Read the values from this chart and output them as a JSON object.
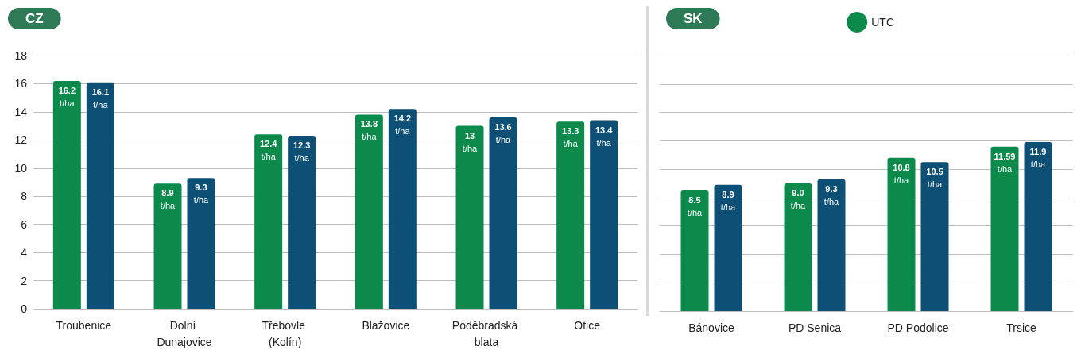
{
  "chart_data": [
    {
      "type": "bar",
      "title": "CZ",
      "categories": [
        "Troubenice",
        "Dolní Dunajovice",
        "Třebovle (Kolín)",
        "Blažovice",
        "Poděbradská blata",
        "Otice"
      ],
      "series": [
        {
          "color": "#0b8a4c",
          "values": [
            16.2,
            8.9,
            12.4,
            13.8,
            13,
            13.3
          ],
          "value_labels": [
            "16.2 t/ha",
            "8.9 t/ha",
            "12.4 t/ha",
            "13.8 t/ha",
            "13 t/ha",
            "13.3 t/ha"
          ]
        },
        {
          "color": "#0d4f75",
          "values": [
            16.1,
            9.3,
            12.3,
            14.2,
            13.6,
            13.4
          ],
          "value_labels": [
            "16.1 t/ha",
            "9.3 t/ha",
            "12.3 t/ha",
            "14.2 t/ha",
            "13.6 t/ha",
            "13.4 t/ha"
          ]
        }
      ],
      "ylim": [
        0,
        18
      ],
      "yticks": [
        0,
        2,
        4,
        6,
        8,
        10,
        12,
        14,
        16,
        18
      ],
      "grid": "y",
      "legend": false
    },
    {
      "type": "bar",
      "title": "SK",
      "categories": [
        "Bánovice",
        "PD Senica",
        "PD Podolice",
        "Trsice"
      ],
      "series": [
        {
          "name": "UTC",
          "color": "#0b8a4c",
          "values": [
            8.5,
            9.0,
            10.8,
            11.59
          ],
          "value_labels": [
            "8.5 t/ha",
            "9.0 t/ha",
            "10.8 t/ha",
            "11.59 t/ha"
          ]
        },
        {
          "color": "#0d4f75",
          "values": [
            8.9,
            9.3,
            10.5,
            11.9
          ],
          "value_labels": [
            "8.9 t/ha",
            "9.3 t/ha",
            "10.5 t/ha",
            "11.9 t/ha"
          ]
        }
      ],
      "ylim": [
        0,
        18
      ],
      "yticks": [
        0,
        2,
        4,
        6,
        8,
        10,
        12,
        14,
        16,
        18
      ],
      "grid": "y",
      "legend": "top right",
      "tick_labels": "x"
    }
  ]
}
